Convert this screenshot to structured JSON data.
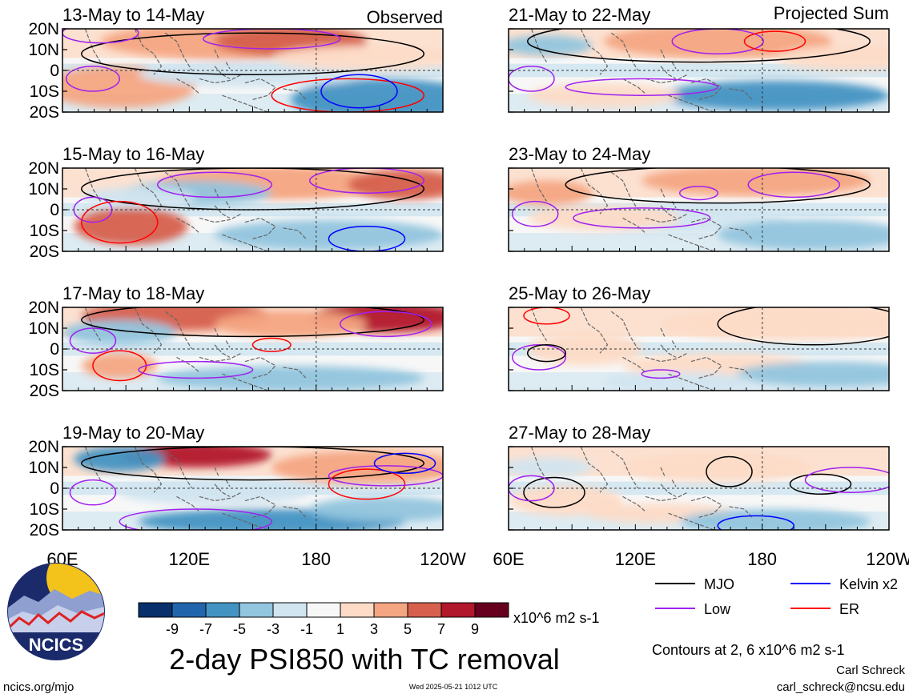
{
  "main_title": "2-day PSI850 with TC removal",
  "column_labels": {
    "left": "Observed",
    "right": "Projected Sum"
  },
  "panels_left": [
    {
      "title": "13-May to 14-May"
    },
    {
      "title": "15-May to 16-May"
    },
    {
      "title": "17-May to 18-May"
    },
    {
      "title": "19-May to 20-May"
    }
  ],
  "panels_right": [
    {
      "title": "21-May to 22-May"
    },
    {
      "title": "23-May to 24-May"
    },
    {
      "title": "25-May to 26-May"
    },
    {
      "title": "27-May to 28-May"
    }
  ],
  "y_ticks": [
    "20N",
    "10N",
    "0",
    "10S",
    "20S"
  ],
  "x_ticks": [
    "60E",
    "120E",
    "180",
    "120W"
  ],
  "colorbar": {
    "labels": [
      "-9",
      "-7",
      "-5",
      "-3",
      "-1",
      "1",
      "3",
      "5",
      "7",
      "9"
    ],
    "colors": [
      "#08306b",
      "#2166ac",
      "#4393c3",
      "#92c5de",
      "#d1e5f0",
      "#f7f7f7",
      "#fddbc7",
      "#f4a582",
      "#d6604d",
      "#b2182b",
      "#67001f"
    ],
    "units": "x10^6 m2 s-1"
  },
  "legend": [
    {
      "label": "MJO",
      "color": "#000000"
    },
    {
      "label": "Kelvin x2",
      "color": "#0000ff"
    },
    {
      "label": "Low",
      "color": "#a020f0"
    },
    {
      "label": "ER",
      "color": "#ff0000"
    }
  ],
  "contours_note": "Contours at 2, 6 x10^6 m2 s-1",
  "author": "Carl Schreck",
  "email": "carl_schreck@ncsu.edu",
  "site": "ncics.org/mjo",
  "timestamp": "Wed 2025-05-21 1012 UTC",
  "logo_text": "NCICS"
}
